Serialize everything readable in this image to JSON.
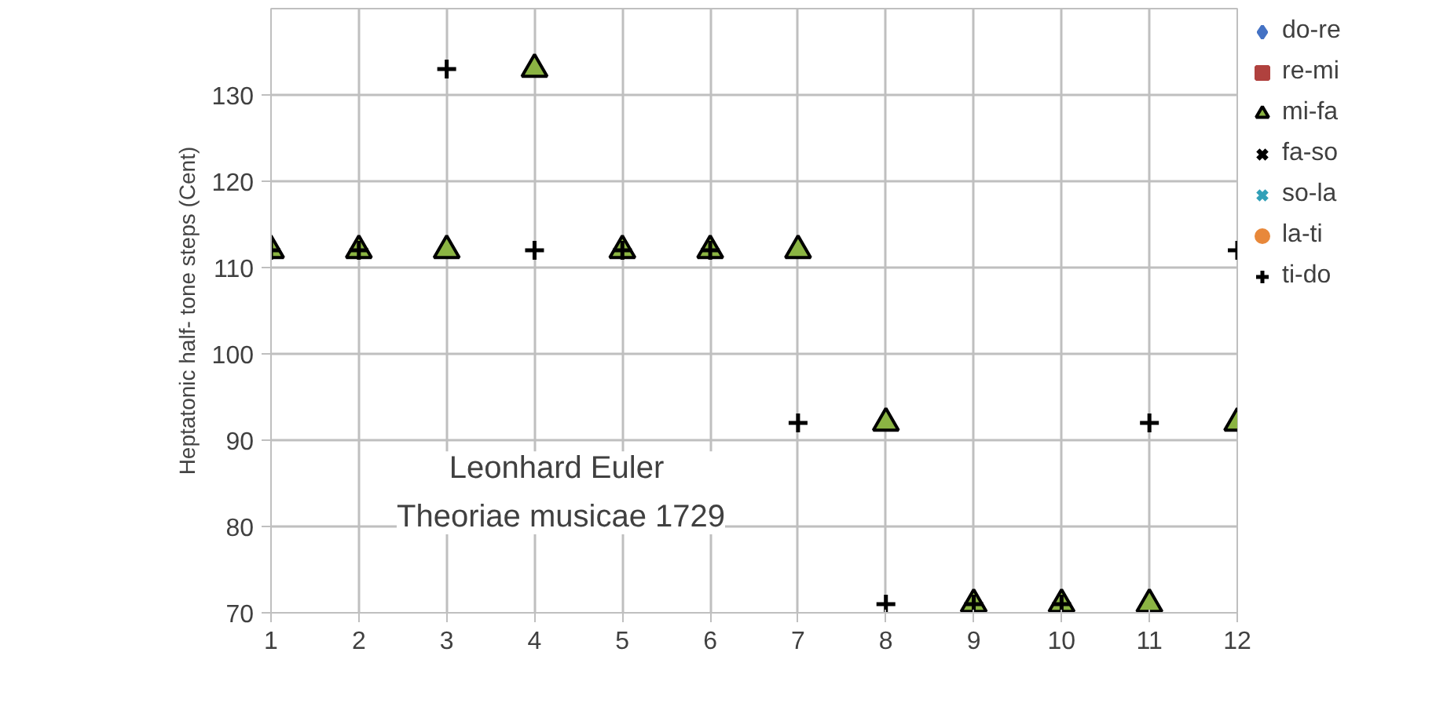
{
  "chart_data": {
    "type": "scatter",
    "ylabel": "Heptatonic half- tone steps (Cent)",
    "x": [
      1,
      2,
      3,
      4,
      5,
      6,
      7,
      8,
      9,
      10,
      11,
      12
    ],
    "xlim": [
      1,
      12
    ],
    "xticks": [
      1,
      2,
      3,
      4,
      5,
      6,
      7,
      8,
      9,
      10,
      11,
      12
    ],
    "ylim": [
      70,
      140
    ],
    "yticks": [
      70,
      80,
      90,
      100,
      110,
      120,
      130
    ],
    "grid": true,
    "legend": "right",
    "annotations": [
      "Leonhard  Euler\nTheoriae musicae 1729"
    ],
    "series": [
      {
        "name": "do-re",
        "color": "#4472c4",
        "marker": "diamond",
        "values": [
          null,
          null,
          null,
          null,
          null,
          null,
          null,
          null,
          null,
          null,
          null,
          null
        ]
      },
      {
        "name": "re-mi",
        "color": "#b0413e",
        "marker": "square",
        "values": [
          null,
          null,
          null,
          null,
          null,
          null,
          null,
          null,
          null,
          null,
          null,
          null
        ]
      },
      {
        "name": "mi-fa",
        "color": "#8bb443",
        "marker": "triangle",
        "values": [
          112,
          112,
          112,
          133,
          112,
          112,
          112,
          92,
          71,
          71,
          71,
          92
        ]
      },
      {
        "name": "fa-so",
        "color": "#000000",
        "marker": "x",
        "values": [
          null,
          null,
          null,
          null,
          null,
          null,
          null,
          null,
          null,
          null,
          null,
          null
        ]
      },
      {
        "name": "so-la",
        "color": "#31a0b8",
        "marker": "x",
        "values": [
          null,
          null,
          null,
          null,
          null,
          null,
          null,
          null,
          null,
          null,
          null,
          null
        ]
      },
      {
        "name": "la-ti",
        "color": "#e8883a",
        "marker": "circle",
        "values": [
          null,
          null,
          null,
          null,
          null,
          null,
          null,
          null,
          null,
          null,
          null,
          null
        ]
      },
      {
        "name": "ti-do",
        "color": "#000000",
        "marker": "cross",
        "values": [
          112,
          112,
          133,
          112,
          112,
          112,
          92,
          71,
          71,
          71,
          92,
          112
        ]
      }
    ]
  }
}
